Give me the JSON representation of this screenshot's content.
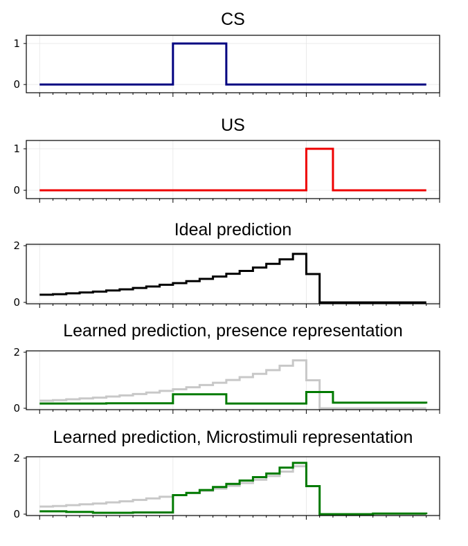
{
  "chart_data": [
    {
      "type": "line",
      "title": "CS",
      "xlim": [
        -2,
        60
      ],
      "ylim": [
        -0.2,
        1.2
      ],
      "yticks": [
        0,
        1
      ],
      "grid": true,
      "series": [
        {
          "color": "#000080",
          "step": true,
          "x": [
            0,
            20,
            28,
            58
          ],
          "y": [
            0,
            1,
            0,
            0
          ]
        }
      ]
    },
    {
      "type": "line",
      "title": "US",
      "xlim": [
        -2,
        60
      ],
      "ylim": [
        -0.2,
        1.2
      ],
      "yticks": [
        0,
        1
      ],
      "grid": true,
      "series": [
        {
          "color": "#ee0000",
          "step": true,
          "x": [
            0,
            40,
            44,
            58
          ],
          "y": [
            0,
            1,
            0,
            0
          ]
        }
      ]
    },
    {
      "type": "line",
      "title": "Ideal prediction",
      "xlim": [
        -2,
        60
      ],
      "ylim": [
        -0.05,
        2.05
      ],
      "yticks": [
        0,
        2
      ],
      "grid": true,
      "series": [
        {
          "color": "#000000",
          "step": true,
          "x": [
            0,
            2,
            4,
            6,
            8,
            10,
            12,
            14,
            16,
            18,
            20,
            22,
            24,
            26,
            28,
            30,
            32,
            34,
            36,
            38,
            40,
            42,
            44,
            58
          ],
          "y": [
            0.27,
            0.29,
            0.32,
            0.35,
            0.38,
            0.42,
            0.46,
            0.51,
            0.56,
            0.62,
            0.68,
            0.75,
            0.83,
            0.91,
            1.01,
            1.11,
            1.23,
            1.36,
            1.52,
            1.71,
            1.0,
            0.0,
            0.0,
            0.0
          ]
        }
      ]
    },
    {
      "type": "line",
      "title": "Learned prediction, presence representation",
      "xlim": [
        -2,
        60
      ],
      "ylim": [
        -0.05,
        2.05
      ],
      "yticks": [
        0,
        2
      ],
      "grid": true,
      "series": [
        {
          "color": "#c8c8c8",
          "step": true,
          "x": [
            0,
            2,
            4,
            6,
            8,
            10,
            12,
            14,
            16,
            18,
            20,
            22,
            24,
            26,
            28,
            30,
            32,
            34,
            36,
            38,
            40,
            42,
            44,
            58
          ],
          "y": [
            0.27,
            0.29,
            0.32,
            0.35,
            0.38,
            0.42,
            0.46,
            0.51,
            0.56,
            0.62,
            0.68,
            0.75,
            0.83,
            0.91,
            1.01,
            1.11,
            1.23,
            1.36,
            1.52,
            1.71,
            1.0,
            0.0,
            0.0,
            0.0
          ]
        },
        {
          "color": "#007a00",
          "step": true,
          "x": [
            0,
            10,
            20,
            28,
            40,
            44,
            58
          ],
          "y": [
            0.17,
            0.18,
            0.5,
            0.17,
            0.58,
            0.2,
            0.17
          ]
        }
      ]
    },
    {
      "type": "line",
      "title": "Learned prediction, Microstimuli representation",
      "xlim": [
        -2,
        60
      ],
      "ylim": [
        -0.05,
        2.05
      ],
      "yticks": [
        0,
        2
      ],
      "grid": true,
      "series": [
        {
          "color": "#c8c8c8",
          "step": true,
          "x": [
            0,
            2,
            4,
            6,
            8,
            10,
            12,
            14,
            16,
            18,
            20,
            22,
            24,
            26,
            28,
            30,
            32,
            34,
            36,
            38,
            40,
            42,
            44,
            58
          ],
          "y": [
            0.27,
            0.29,
            0.32,
            0.35,
            0.38,
            0.42,
            0.46,
            0.51,
            0.56,
            0.62,
            0.68,
            0.75,
            0.83,
            0.91,
            1.01,
            1.11,
            1.23,
            1.36,
            1.52,
            1.71,
            1.0,
            0.0,
            0.0,
            0.0
          ]
        },
        {
          "color": "#007a00",
          "step": true,
          "x": [
            0,
            4,
            8,
            14,
            20,
            22,
            24,
            26,
            28,
            30,
            32,
            34,
            36,
            38,
            40,
            42,
            50,
            58
          ],
          "y": [
            0.1,
            0.08,
            0.05,
            0.06,
            0.68,
            0.76,
            0.86,
            0.97,
            1.08,
            1.2,
            1.32,
            1.45,
            1.66,
            1.83,
            1.0,
            0.0,
            0.02,
            0.0
          ]
        }
      ]
    }
  ]
}
